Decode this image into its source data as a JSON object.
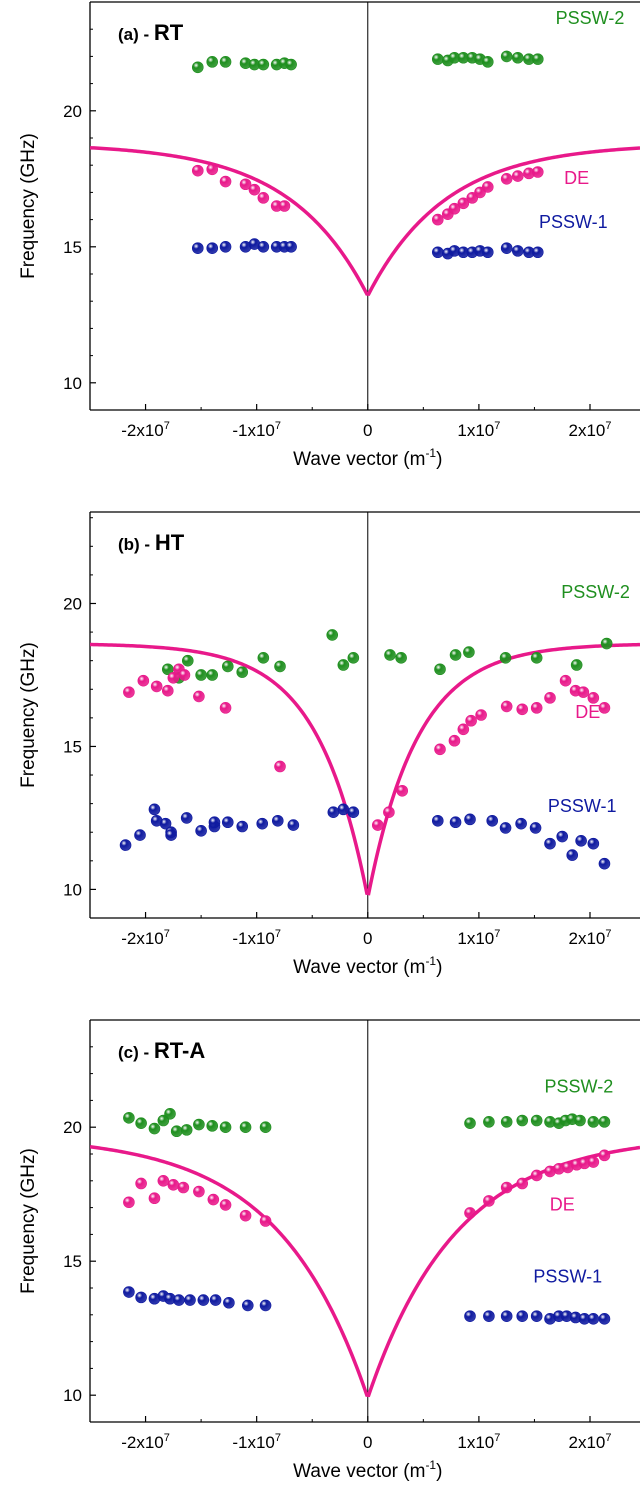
{
  "colors": {
    "pssw2": "#1f8f1f",
    "de": "#e8198a",
    "pssw1": "#0f1aa0",
    "axis": "#000000"
  },
  "chart_data": [
    {
      "type": "scatter",
      "panel_label": "(a) - ",
      "panel_title": "RT",
      "xlabel": "Wave vector (m",
      "xlabel_sup": "-1",
      "xlabel_end": ")",
      "ylabel": "Frequency (GHz)",
      "xlim": [
        -25000000,
        24500000
      ],
      "ylim": [
        9,
        24
      ],
      "xticks": [
        -20000000,
        -10000000,
        0,
        10000000,
        20000000
      ],
      "xtick_labels": [
        {
          "base": "-2x10",
          "exp": "7"
        },
        {
          "base": "-1x10",
          "exp": "7"
        },
        {
          "base": "0",
          "exp": ""
        },
        {
          "base": "1x10",
          "exp": "7"
        },
        {
          "base": "2x10",
          "exp": "7"
        }
      ],
      "yticks": [
        10,
        15,
        20
      ],
      "ytick_labels": [
        "10",
        "15",
        "20"
      ],
      "curve": {
        "f0": 13.2,
        "fmax": 18.8,
        "kscale": 7000000
      },
      "series": [
        {
          "name": "PSSW-2",
          "color_key": "pssw2",
          "x": [
            -15300000,
            -14000000,
            -12800000,
            -11000000,
            -10200000,
            -9400000,
            -8200000,
            -7500000,
            -6900000,
            6300000,
            7200000,
            7800000,
            8600000,
            9400000,
            10100000,
            10800000,
            12500000,
            13500000,
            14500000,
            15300000
          ],
          "y": [
            21.6,
            21.8,
            21.8,
            21.75,
            21.7,
            21.7,
            21.7,
            21.75,
            21.7,
            21.9,
            21.85,
            21.95,
            21.95,
            21.95,
            21.9,
            21.8,
            22.0,
            21.95,
            21.9,
            21.9
          ]
        },
        {
          "name": "DE",
          "color_key": "de",
          "x": [
            -15300000,
            -14000000,
            -12800000,
            -11000000,
            -10200000,
            -9400000,
            -8200000,
            -7500000,
            6300000,
            7200000,
            7800000,
            8600000,
            9400000,
            10100000,
            10800000,
            12500000,
            13500000,
            14500000,
            15300000
          ],
          "y": [
            17.8,
            17.85,
            17.4,
            17.3,
            17.1,
            16.8,
            16.5,
            16.5,
            16.0,
            16.2,
            16.4,
            16.6,
            16.8,
            17.0,
            17.2,
            17.5,
            17.6,
            17.7,
            17.75
          ]
        },
        {
          "name": "PSSW-1",
          "color_key": "pssw1",
          "x": [
            -15300000,
            -14000000,
            -12800000,
            -11000000,
            -10200000,
            -9400000,
            -8200000,
            -7500000,
            -6900000,
            6300000,
            7200000,
            7800000,
            8600000,
            9400000,
            10100000,
            10800000,
            12500000,
            13500000,
            14500000,
            15300000
          ],
          "y": [
            14.95,
            14.95,
            15.0,
            15.0,
            15.1,
            15.0,
            15.0,
            15.0,
            15.0,
            14.8,
            14.75,
            14.85,
            14.8,
            14.8,
            14.85,
            14.8,
            14.95,
            14.85,
            14.8,
            14.8
          ]
        }
      ],
      "series_labels": [
        {
          "name": "PSSW-2",
          "x": 20000000,
          "y": 23.2,
          "color_key": "pssw2"
        },
        {
          "name": "DE",
          "x": 18800000,
          "y": 17.3,
          "color_key": "de"
        },
        {
          "name": "PSSW-1",
          "x": 18500000,
          "y": 15.7,
          "color_key": "pssw1"
        }
      ]
    },
    {
      "type": "scatter",
      "panel_label": "(b) - ",
      "panel_title": "HT",
      "xlabel": "Wave vector (m",
      "xlabel_sup": "-1",
      "xlabel_end": ")",
      "ylabel": "Frequency (GHz)",
      "xlim": [
        -25000000,
        24500000
      ],
      "ylim": [
        9,
        23.2
      ],
      "xticks": [
        -20000000,
        -10000000,
        0,
        10000000,
        20000000
      ],
      "xtick_labels": [
        {
          "base": "-2x10",
          "exp": "7"
        },
        {
          "base": "-1x10",
          "exp": "7"
        },
        {
          "base": "0",
          "exp": ""
        },
        {
          "base": "1x10",
          "exp": "7"
        },
        {
          "base": "2x10",
          "exp": "7"
        }
      ],
      "yticks": [
        10,
        15,
        20
      ],
      "ytick_labels": [
        "10",
        "15",
        "20"
      ],
      "curve": {
        "f0": 9.7,
        "fmax": 18.6,
        "kscale": 4500000
      },
      "series": [
        {
          "name": "PSSW-2",
          "color_key": "pssw2",
          "x": [
            -18000000,
            -17000000,
            -16200000,
            -15000000,
            -14000000,
            -12600000,
            -11300000,
            -9400000,
            -7900000,
            -3200000,
            -2200000,
            -1300000,
            2000000,
            3000000,
            6500000,
            7900000,
            9100000,
            12400000,
            15200000,
            18800000,
            21500000
          ],
          "y": [
            17.7,
            17.4,
            18.0,
            17.5,
            17.5,
            17.8,
            17.6,
            18.1,
            17.8,
            18.9,
            17.85,
            18.1,
            18.2,
            18.1,
            17.7,
            18.2,
            18.3,
            18.1,
            18.1,
            17.85,
            18.6
          ]
        },
        {
          "name": "DE",
          "color_key": "de",
          "x": [
            -21500000,
            -20200000,
            -19000000,
            -18000000,
            -17500000,
            -15200000,
            -12800000,
            -7900000,
            900000,
            1900000,
            3100000,
            6500000,
            7800000,
            8600000,
            9300000,
            10200000,
            12500000,
            13900000,
            15200000,
            16400000,
            17800000,
            18700000,
            19400000,
            20300000,
            21300000
          ],
          "y": [
            16.9,
            17.3,
            17.1,
            16.95,
            17.4,
            16.75,
            16.35,
            14.3,
            12.25,
            12.7,
            13.45,
            14.9,
            15.2,
            15.6,
            15.9,
            16.1,
            16.4,
            16.3,
            16.35,
            16.7,
            17.3,
            16.95,
            16.9,
            16.7,
            16.35
          ],
          "x2": [
            -17000000,
            -16500000
          ],
          "y2": [
            17.7,
            17.5
          ]
        },
        {
          "name": "PSSW-1",
          "color_key": "pssw1",
          "x": [
            -21800000,
            -20500000,
            -19200000,
            -18200000,
            -17700000,
            -16300000,
            -15000000,
            -13800000,
            -12600000,
            -11300000,
            -9500000,
            -8100000,
            -6700000,
            -3100000,
            -2200000,
            -1300000,
            6300000,
            7900000,
            9200000,
            11200000,
            12400000,
            13800000,
            15100000,
            16400000,
            17500000,
            18400000,
            19200000,
            20300000,
            21300000
          ],
          "y": [
            11.55,
            11.9,
            12.8,
            12.3,
            12.0,
            12.5,
            12.05,
            12.2,
            12.35,
            12.2,
            12.3,
            12.4,
            12.25,
            12.7,
            12.8,
            12.7,
            12.4,
            12.35,
            12.45,
            12.4,
            12.15,
            12.3,
            12.15,
            11.6,
            11.85,
            11.2,
            11.7,
            11.6,
            10.9
          ],
          "x2": [
            -17700000,
            -19000000,
            -13800000
          ],
          "y2": [
            11.9,
            12.4,
            12.35
          ]
        }
      ],
      "series_labels": [
        {
          "name": "PSSW-2",
          "x": 20500000,
          "y": 20.2,
          "color_key": "pssw2"
        },
        {
          "name": "DE",
          "x": 19800000,
          "y": 16.0,
          "color_key": "de"
        },
        {
          "name": "PSSW-1",
          "x": 19300000,
          "y": 12.7,
          "color_key": "pssw1"
        }
      ]
    },
    {
      "type": "scatter",
      "panel_label": "(c) - ",
      "panel_title": "RT-A",
      "xlabel": "Wave vector (m",
      "xlabel_sup": "-1",
      "xlabel_end": ")",
      "ylabel": "Frequency (GHz)",
      "xlim": [
        -25000000,
        24500000
      ],
      "ylim": [
        9,
        24
      ],
      "xticks": [
        -20000000,
        -10000000,
        0,
        10000000,
        20000000
      ],
      "xtick_labels": [
        {
          "base": "-2x10",
          "exp": "7"
        },
        {
          "base": "-1x10",
          "exp": "7"
        },
        {
          "base": "0",
          "exp": ""
        },
        {
          "base": "1x10",
          "exp": "7"
        },
        {
          "base": "2x10",
          "exp": "7"
        }
      ],
      "yticks": [
        10,
        15,
        20
      ],
      "ytick_labels": [
        "10",
        "15",
        "20"
      ],
      "curve": {
        "f0": 9.9,
        "fmax": 19.7,
        "kscale": 8000000
      },
      "series": [
        {
          "name": "PSSW-2",
          "color_key": "pssw2",
          "x": [
            -21500000,
            -20400000,
            -19200000,
            -18400000,
            -17800000,
            -17200000,
            -16300000,
            -15200000,
            -14000000,
            -12800000,
            -11000000,
            -9200000,
            9200000,
            10900000,
            12500000,
            13900000,
            15200000,
            16400000,
            17200000,
            17800000,
            18400000,
            19100000,
            20300000,
            21300000
          ],
          "y": [
            20.35,
            20.15,
            19.95,
            20.25,
            20.5,
            19.85,
            19.9,
            20.1,
            20.05,
            20.0,
            20.0,
            20.0,
            20.15,
            20.2,
            20.2,
            20.25,
            20.25,
            20.2,
            20.15,
            20.25,
            20.3,
            20.25,
            20.2,
            20.2
          ]
        },
        {
          "name": "DE",
          "color_key": "de",
          "x": [
            -21500000,
            -20400000,
            -19200000,
            -18400000,
            -17500000,
            -16600000,
            -15200000,
            -13900000,
            -12800000,
            -11000000,
            -9200000,
            9200000,
            10900000,
            12500000,
            13900000,
            15200000,
            16400000,
            17200000,
            18000000,
            18800000,
            19500000,
            20300000,
            21300000
          ],
          "y": [
            17.2,
            17.9,
            17.35,
            18.0,
            17.85,
            17.75,
            17.6,
            17.3,
            17.1,
            16.7,
            16.5,
            16.8,
            17.25,
            17.75,
            17.9,
            18.2,
            18.35,
            18.45,
            18.5,
            18.6,
            18.65,
            18.7,
            18.95
          ]
        },
        {
          "name": "PSSW-1",
          "color_key": "pssw1",
          "x": [
            -21500000,
            -20400000,
            -19200000,
            -18400000,
            -17800000,
            -17000000,
            -16000000,
            -14800000,
            -13700000,
            -12500000,
            -10800000,
            -9200000,
            9200000,
            10900000,
            12500000,
            13900000,
            15200000,
            16400000,
            17200000,
            17900000,
            18700000,
            19500000,
            20300000,
            21300000
          ],
          "y": [
            13.85,
            13.65,
            13.6,
            13.7,
            13.6,
            13.55,
            13.55,
            13.55,
            13.55,
            13.45,
            13.35,
            13.35,
            12.95,
            12.95,
            12.95,
            12.95,
            12.95,
            12.85,
            12.95,
            12.95,
            12.9,
            12.85,
            12.85,
            12.85
          ]
        }
      ],
      "series_labels": [
        {
          "name": "PSSW-2",
          "x": 19000000,
          "y": 21.3,
          "color_key": "pssw2"
        },
        {
          "name": "DE",
          "x": 17500000,
          "y": 16.9,
          "color_key": "de"
        },
        {
          "name": "PSSW-1",
          "x": 18000000,
          "y": 14.2,
          "color_key": "pssw1"
        }
      ]
    }
  ]
}
